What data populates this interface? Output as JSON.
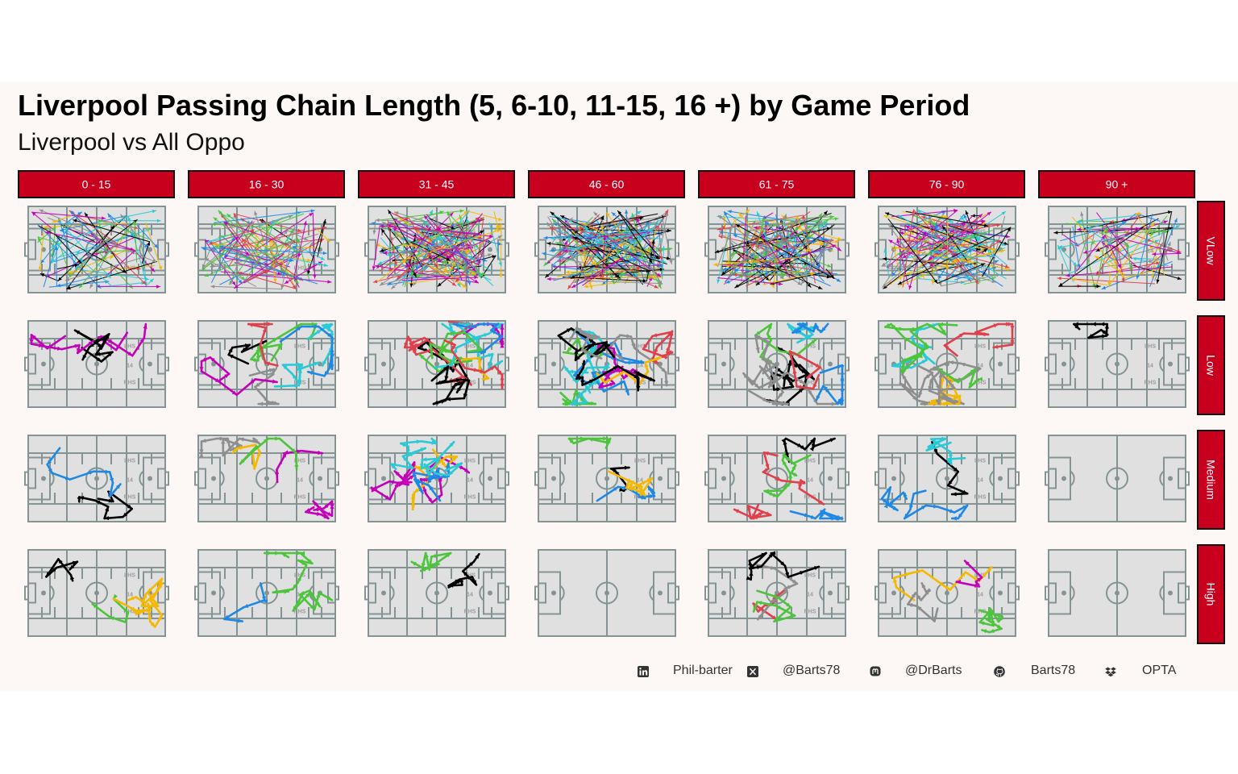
{
  "header": {
    "title": "Liverpool Passing Chain Length (5, 6-10, 11-15, 16 +) by Game Period",
    "subtitle": "Liverpool vs All Oppo"
  },
  "chart_data": {
    "type": "facet-pitch-chains",
    "columns": [
      "0 - 15",
      "16 - 30",
      "31 - 45",
      "46 - 60",
      "61 - 75",
      "76 - 90",
      "90 +"
    ],
    "rows": [
      "VLow",
      "Low",
      "Medium",
      "High"
    ],
    "facet_strip_color": "#c8001e",
    "pitch_fill": "#e0e0e0",
    "pitch_line_color": "#849494",
    "zone_labels": [
      "LHS",
      "14",
      "RHS"
    ],
    "chain_colors": [
      "#1e88e5",
      "#e0404c",
      "#8e8e8e",
      "#f5b800",
      "#2ac9d6",
      "#c400b8",
      "#4cc43c",
      "#000000"
    ],
    "chain_counts": [
      [
        55,
        60,
        110,
        120,
        100,
        95,
        55
      ],
      [
        3,
        8,
        12,
        14,
        10,
        9,
        1
      ],
      [
        2,
        5,
        6,
        4,
        6,
        4,
        0
      ],
      [
        4,
        3,
        2,
        0,
        4,
        4,
        0
      ]
    ]
  },
  "footer": {
    "linkedin_icon": "linkedin-icon",
    "linkedin": "Phil-barter",
    "x_icon": "x-icon",
    "x": "@Barts78",
    "mastodon_icon": "mastodon-icon",
    "mastodon": "@DrBarts",
    "github_icon": "github-icon",
    "github": "Barts78",
    "dropbox_icon": "dropbox-icon",
    "source": "OPTA"
  }
}
